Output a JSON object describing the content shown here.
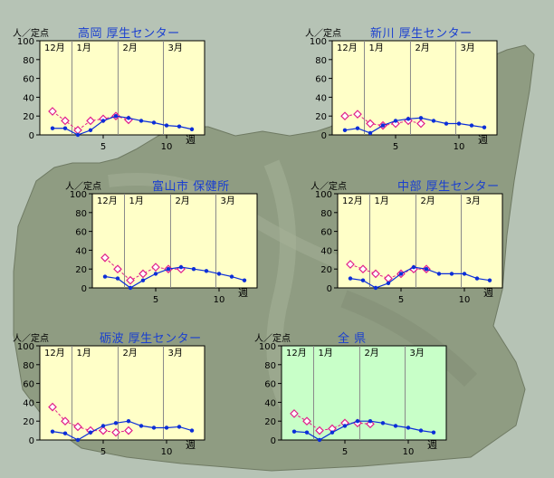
{
  "unit_label": "人／定点",
  "week_suffix": "週",
  "y_ticks": [
    "100",
    "80",
    "60",
    "40",
    "20",
    "0"
  ],
  "x_ticks": [
    "5",
    "10"
  ],
  "colors": {
    "plot_bg": "#ffffc8",
    "plot_bg_highlight": "#c8ffc8",
    "current_series": "#0b2ed8",
    "previous_series": "#e0208a",
    "title": "#1a3fd0"
  },
  "chart_data": [
    {
      "type": "line",
      "title": "高岡 厚生センター",
      "months": [
        "12月",
        "1月",
        "2月",
        "3月"
      ],
      "ylim": [
        0,
        100
      ],
      "highlight": false,
      "series": [
        {
          "x": [
            1,
            2,
            3,
            4,
            5,
            6,
            7,
            8,
            9,
            10,
            11,
            12
          ],
          "values": [
            7,
            7,
            0,
            5,
            15,
            20,
            18,
            15,
            13,
            10,
            9,
            6
          ]
        },
        {
          "x": [
            1,
            2,
            3,
            4,
            5,
            6,
            7
          ],
          "values": [
            25,
            15,
            5,
            15,
            17,
            20,
            16
          ]
        }
      ]
    },
    {
      "type": "line",
      "title": "新川 厚生センター",
      "months": [
        "12月",
        "1月",
        "2月",
        "3月"
      ],
      "ylim": [
        0,
        100
      ],
      "highlight": false,
      "series": [
        {
          "x": [
            1,
            2,
            3,
            4,
            5,
            6,
            7,
            8,
            9,
            10,
            11,
            12
          ],
          "values": [
            5,
            7,
            2,
            10,
            15,
            17,
            18,
            15,
            12,
            12,
            10,
            8
          ]
        },
        {
          "x": [
            1,
            2,
            3,
            4,
            5,
            6,
            7
          ],
          "values": [
            20,
            22,
            12,
            10,
            12,
            15,
            12
          ]
        }
      ]
    },
    {
      "type": "line",
      "title": "富山市 保健所",
      "months": [
        "12月",
        "1月",
        "2月",
        "3月"
      ],
      "ylim": [
        0,
        100
      ],
      "highlight": false,
      "series": [
        {
          "x": [
            1,
            2,
            3,
            4,
            5,
            6,
            7,
            8,
            9,
            10,
            11,
            12
          ],
          "values": [
            12,
            10,
            0,
            8,
            15,
            20,
            22,
            20,
            18,
            15,
            12,
            8
          ]
        },
        {
          "x": [
            1,
            2,
            3,
            4,
            5,
            6,
            7
          ],
          "values": [
            32,
            20,
            8,
            15,
            22,
            20,
            20
          ]
        }
      ]
    },
    {
      "type": "line",
      "title": "中部 厚生センター",
      "months": [
        "12月",
        "1月",
        "2月",
        "3月"
      ],
      "ylim": [
        0,
        100
      ],
      "highlight": false,
      "series": [
        {
          "x": [
            1,
            2,
            3,
            4,
            5,
            6,
            7,
            8,
            9,
            10,
            11,
            12
          ],
          "values": [
            10,
            8,
            0,
            5,
            15,
            22,
            20,
            15,
            15,
            15,
            10,
            8
          ]
        },
        {
          "x": [
            1,
            2,
            3,
            4,
            5,
            6,
            7
          ],
          "values": [
            25,
            20,
            15,
            10,
            15,
            20,
            20
          ]
        }
      ]
    },
    {
      "type": "line",
      "title": "砺波 厚生センター",
      "months": [
        "12月",
        "1月",
        "2月",
        "3月"
      ],
      "ylim": [
        0,
        100
      ],
      "highlight": false,
      "series": [
        {
          "x": [
            1,
            2,
            3,
            4,
            5,
            6,
            7,
            8,
            9,
            10,
            11,
            12
          ],
          "values": [
            9,
            7,
            0,
            8,
            15,
            18,
            20,
            15,
            13,
            13,
            14,
            10
          ]
        },
        {
          "x": [
            1,
            2,
            3,
            4,
            5,
            6,
            7
          ],
          "values": [
            35,
            20,
            14,
            10,
            10,
            8,
            10
          ]
        }
      ]
    },
    {
      "type": "line",
      "title": "全 県",
      "months": [
        "12月",
        "1月",
        "2月",
        "3月"
      ],
      "ylim": [
        0,
        100
      ],
      "highlight": true,
      "series": [
        {
          "x": [
            1,
            2,
            3,
            4,
            5,
            6,
            7,
            8,
            9,
            10,
            11,
            12
          ],
          "values": [
            9,
            8,
            0,
            8,
            15,
            20,
            20,
            18,
            15,
            13,
            10,
            8
          ]
        },
        {
          "x": [
            1,
            2,
            3,
            4,
            5,
            6,
            7
          ],
          "values": [
            28,
            20,
            10,
            12,
            18,
            18,
            17
          ]
        }
      ]
    }
  ]
}
